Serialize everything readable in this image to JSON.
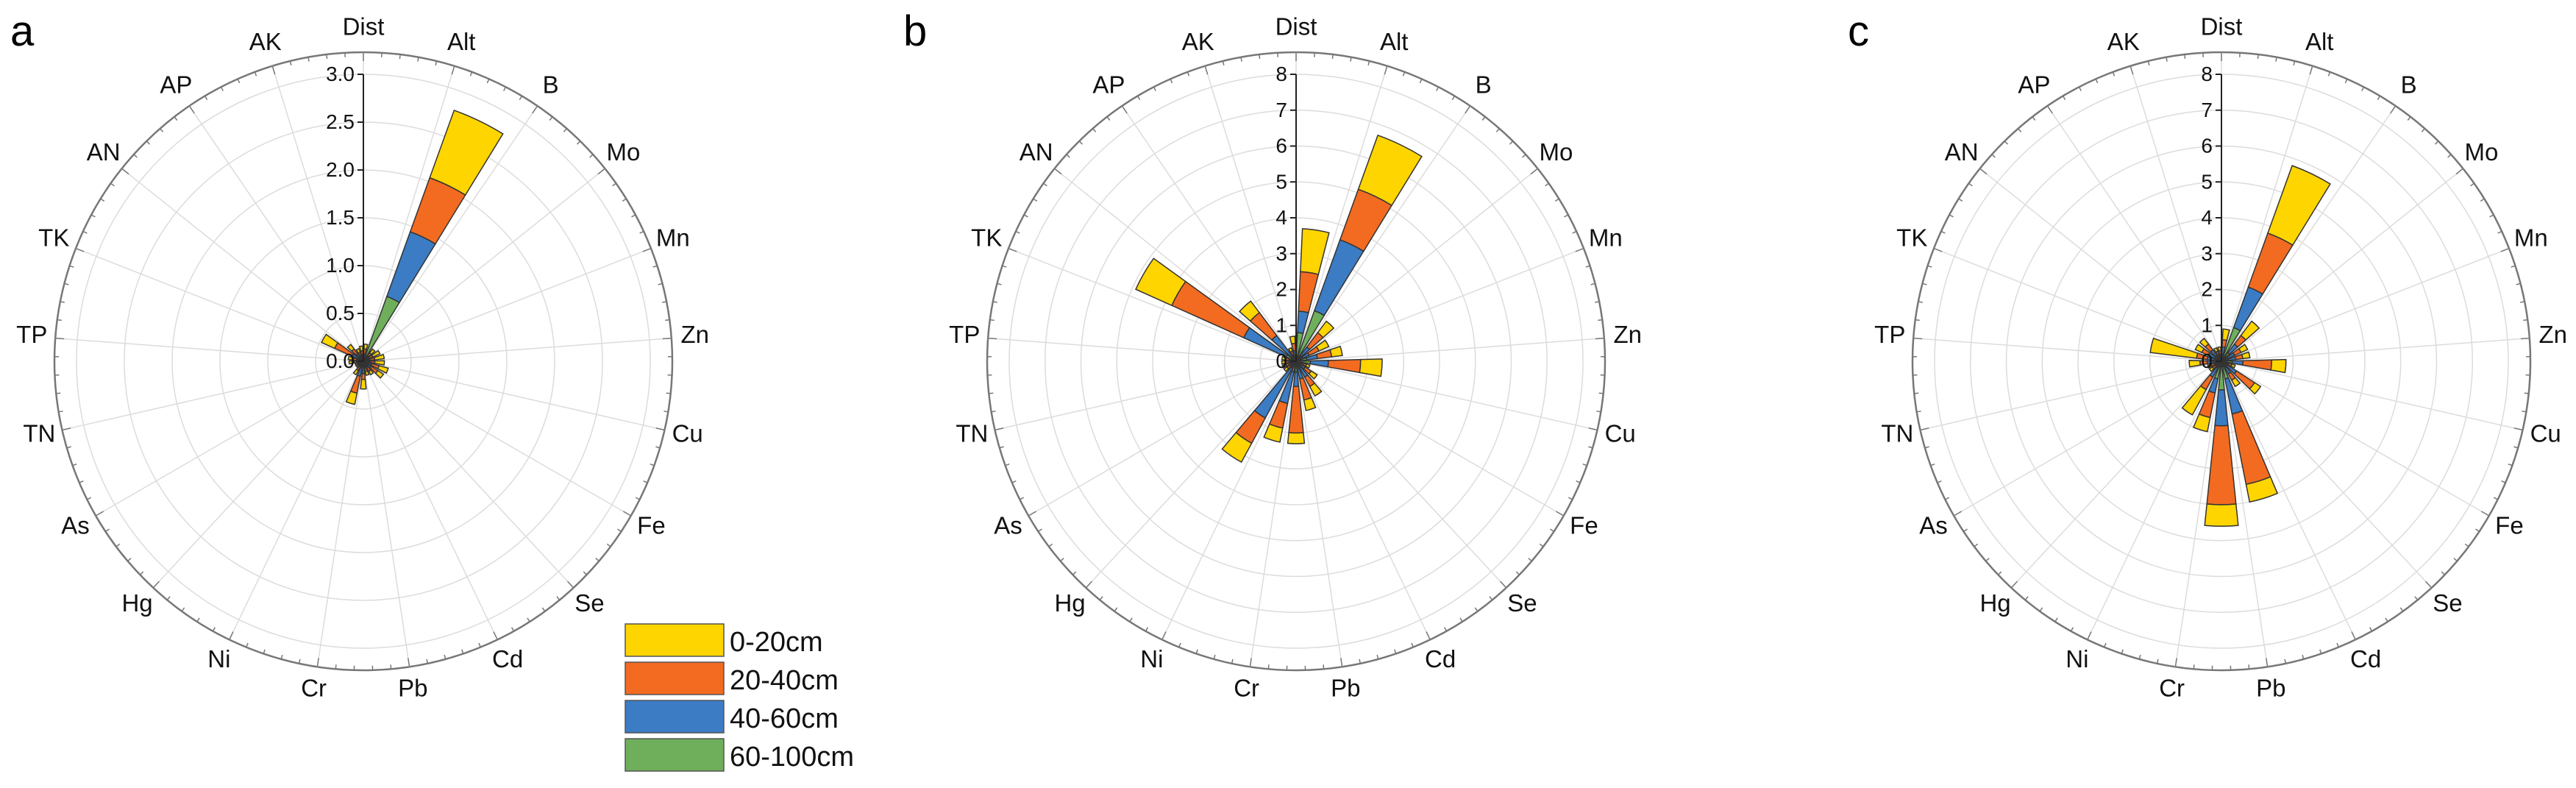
{
  "legend": [
    {
      "label": "0-20cm",
      "color": "#FFD500"
    },
    {
      "label": "20-40cm",
      "color": "#F26B21"
    },
    {
      "label": "40-60cm",
      "color": "#3B7CC4"
    },
    {
      "label": "60-100cm",
      "color": "#6FAF5C"
    }
  ],
  "chart_data": [
    {
      "type": "stacked-polar-bar",
      "panel": "a",
      "categories": [
        "Dist",
        "Alt",
        "B",
        "Mo",
        "Mn",
        "Zn",
        "Cu",
        "Fe",
        "Se",
        "Cd",
        "Pb",
        "Cr",
        "Ni",
        "Hg",
        "As",
        "TN",
        "TP",
        "TK",
        "AN",
        "AP",
        "AK"
      ],
      "rlim": [
        0,
        3.0
      ],
      "rticks": [
        "0.0",
        "0.5",
        "1.0",
        "1.5",
        "2.0",
        "2.5",
        "3.0"
      ],
      "grid": true,
      "series": [
        {
          "name": "60-100cm",
          "values": [
            0.05,
            0.72,
            0.04,
            0.04,
            0.04,
            0.04,
            0.04,
            0.04,
            0.04,
            0.04,
            0.05,
            0.06,
            0.04,
            0.03,
            0.03,
            0.04,
            0.04,
            0.05,
            0.05,
            0.04,
            0.04
          ]
        },
        {
          "name": "40-60cm",
          "values": [
            0.03,
            0.72,
            0.03,
            0.03,
            0.03,
            0.03,
            0.05,
            0.06,
            0.03,
            0.03,
            0.08,
            0.1,
            0.03,
            0.02,
            0.02,
            0.03,
            0.03,
            0.08,
            0.05,
            0.03,
            0.03
          ]
        },
        {
          "name": "20-40cm",
          "values": [
            0.05,
            0.6,
            0.04,
            0.04,
            0.05,
            0.05,
            0.08,
            0.08,
            0.05,
            0.04,
            0.06,
            0.18,
            0.04,
            0.02,
            0.02,
            0.03,
            0.04,
            0.2,
            0.06,
            0.03,
            0.04
          ]
        },
        {
          "name": "0-20cm",
          "values": [
            0.05,
            0.75,
            0.05,
            0.08,
            0.1,
            0.1,
            0.1,
            0.07,
            0.04,
            0.04,
            0.1,
            0.12,
            0.05,
            0.02,
            0.02,
            0.05,
            0.05,
            0.15,
            0.06,
            0.04,
            0.05
          ]
        }
      ]
    },
    {
      "type": "stacked-polar-bar",
      "panel": "b",
      "categories": [
        "Dist",
        "Alt",
        "B",
        "Mo",
        "Mn",
        "Zn",
        "Cu",
        "Fe",
        "Se",
        "Cd",
        "Pb",
        "Cr",
        "Ni",
        "Hg",
        "As",
        "TN",
        "TP",
        "TK",
        "AN",
        "AP",
        "AK"
      ],
      "rlim": [
        0,
        8
      ],
      "rticks": [
        "0",
        "1",
        "2",
        "3",
        "4",
        "5",
        "6",
        "7",
        "8"
      ],
      "grid": true,
      "series": [
        {
          "name": "60-100cm",
          "values": [
            0.8,
            1.5,
            0.2,
            0.2,
            0.3,
            0.4,
            0.1,
            0.1,
            0.2,
            0.2,
            0.3,
            0.3,
            0.2,
            0.1,
            0.1,
            0.1,
            0.1,
            0.3,
            0.2,
            0.1,
            0.1
          ]
        },
        {
          "name": "40-60cm",
          "values": [
            0.6,
            2.1,
            0.3,
            0.2,
            0.3,
            0.5,
            0.1,
            0.2,
            0.3,
            0.3,
            0.4,
            0.9,
            1.6,
            0.1,
            0.1,
            0.1,
            0.1,
            1.3,
            0.7,
            0.1,
            0.2
          ]
        },
        {
          "name": "20-40cm",
          "values": [
            1.1,
            1.5,
            0.5,
            0.3,
            0.4,
            0.9,
            0.1,
            0.2,
            0.3,
            0.6,
            1.3,
            0.7,
            0.8,
            0.1,
            0.1,
            0.1,
            0.1,
            2.2,
            0.8,
            0.1,
            0.2
          ]
        },
        {
          "name": "0-20cm",
          "values": [
            1.2,
            1.6,
            0.4,
            0.3,
            0.3,
            0.6,
            0.1,
            0.2,
            0.3,
            0.3,
            0.3,
            0.4,
            0.6,
            0.1,
            0.1,
            0.1,
            0.1,
            1.1,
            0.4,
            0.1,
            0.2
          ]
        }
      ]
    },
    {
      "type": "stacked-polar-bar",
      "panel": "c",
      "categories": [
        "Dist",
        "Alt",
        "B",
        "Mo",
        "Mn",
        "Zn",
        "Cu",
        "Fe",
        "Se",
        "Cd",
        "Pb",
        "Cr",
        "Ni",
        "Hg",
        "As",
        "TN",
        "TP",
        "TK",
        "AN",
        "AP",
        "AK"
      ],
      "rlim": [
        0,
        8
      ],
      "rticks": [
        "0",
        "1",
        "2",
        "3",
        "4",
        "5",
        "6",
        "7",
        "8"
      ],
      "grid": true,
      "series": [
        {
          "name": "60-100cm",
          "values": [
            0.2,
            1.0,
            0.3,
            0.2,
            0.2,
            0.3,
            0.1,
            0.2,
            0.2,
            0.5,
            0.8,
            0.5,
            0.2,
            0.1,
            0.1,
            0.2,
            0.2,
            0.2,
            0.2,
            0.1,
            0.1
          ]
        },
        {
          "name": "40-60cm",
          "values": [
            0.2,
            1.2,
            0.3,
            0.2,
            0.2,
            0.3,
            0.1,
            0.3,
            0.2,
            1.0,
            1.0,
            0.4,
            0.3,
            0.1,
            0.1,
            0.2,
            0.2,
            0.2,
            0.2,
            0.1,
            0.1
          ]
        },
        {
          "name": "20-40cm",
          "values": [
            0.2,
            1.6,
            0.3,
            0.2,
            0.2,
            0.8,
            0.1,
            0.6,
            0.2,
            2.0,
            2.2,
            0.7,
            0.4,
            0.1,
            0.1,
            0.2,
            0.3,
            0.2,
            0.2,
            0.1,
            0.1
          ]
        },
        {
          "name": "0-20cm",
          "values": [
            0.3,
            2.0,
            0.5,
            0.2,
            0.2,
            0.4,
            0.1,
            0.2,
            0.2,
            0.5,
            0.6,
            0.4,
            0.8,
            0.1,
            0.1,
            0.3,
            1.3,
            0.2,
            0.2,
            0.1,
            0.1
          ]
        }
      ]
    }
  ]
}
